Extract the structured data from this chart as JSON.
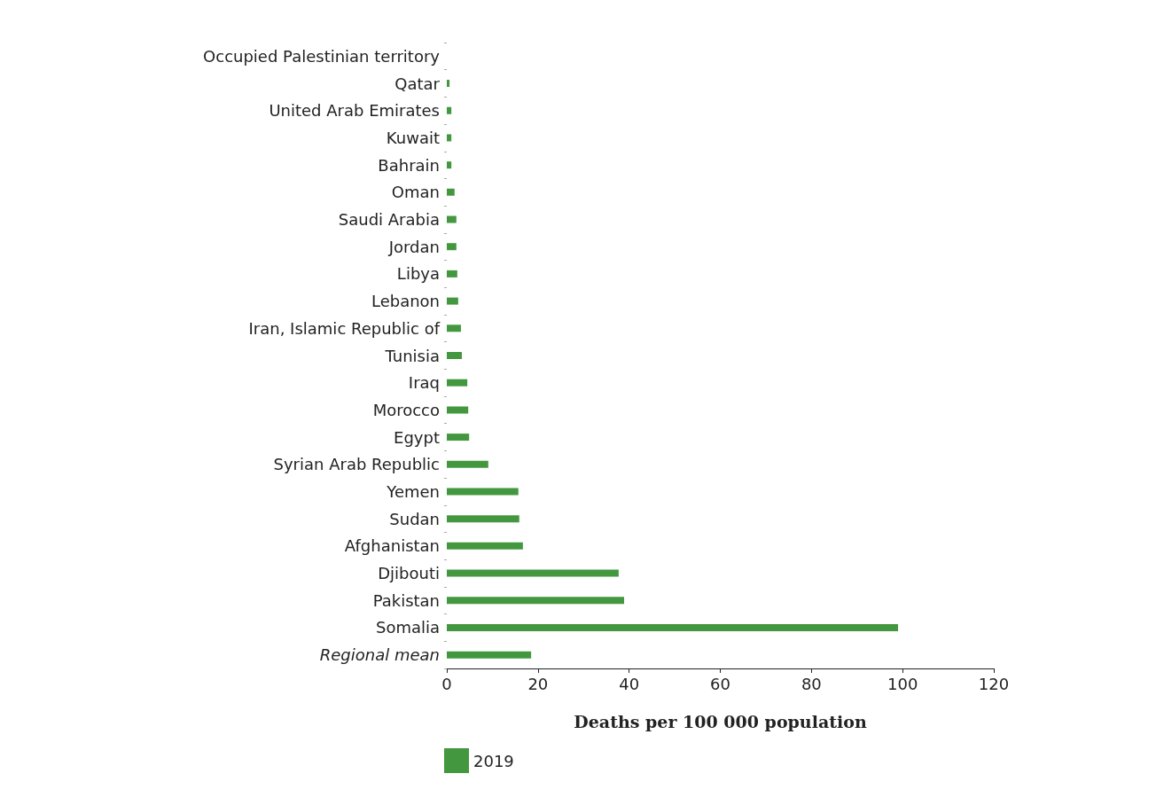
{
  "chart_data": {
    "type": "bar",
    "orientation": "horizontal",
    "xlabel": "Deaths per 100 000 population",
    "categories": [
      "Occupied Palestinian territory",
      "Qatar",
      "United Arab Emirates",
      "Kuwait",
      "Bahrain",
      "Oman",
      "Saudi Arabia",
      "Jordan",
      "Libya",
      "Lebanon",
      "Iran, Islamic Republic of",
      "Tunisia",
      "Iraq",
      "Morocco",
      "Egypt",
      "Syrian Arab Republic",
      "Yemen",
      "Sudan",
      "Afghanistan",
      "Djibouti",
      "Pakistan",
      "Somalia",
      "Regional mean"
    ],
    "series": [
      {
        "name": "2019",
        "color": "#43983f",
        "values": [
          0,
          0.6,
          1.0,
          1.0,
          1.0,
          1.7,
          2.1,
          2.1,
          2.3,
          2.5,
          3.1,
          3.3,
          4.5,
          4.7,
          4.9,
          9.1,
          15.7,
          15.9,
          16.7,
          37.7,
          38.9,
          99.0,
          18.5
        ]
      }
    ],
    "xlim": [
      0,
      120
    ],
    "xticks": [
      0,
      20,
      40,
      60,
      80,
      100,
      120
    ],
    "grid": false,
    "legend": "bottom"
  }
}
